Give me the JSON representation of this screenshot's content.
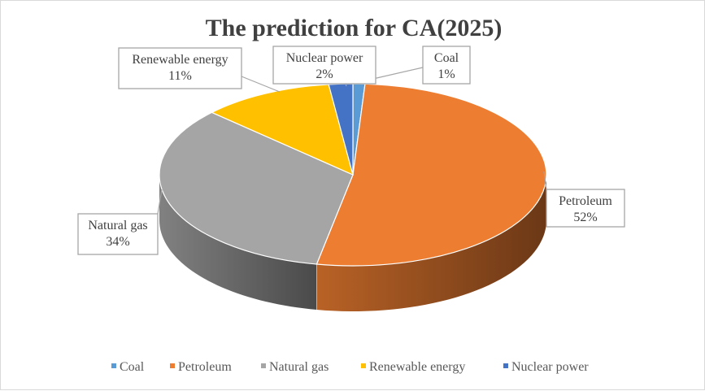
{
  "chart_data": {
    "type": "pie",
    "title": "The prediction for CA(2025)",
    "categories": [
      "Coal",
      "Petroleum",
      "Natural gas",
      "Renewable energy",
      "Nuclear power"
    ],
    "values": [
      1,
      52,
      34,
      11,
      2
    ],
    "value_labels": [
      "1%",
      "52%",
      "34%",
      "11%",
      "2%"
    ],
    "colors": [
      "#5b9bd5",
      "#ed7d31",
      "#a5a5a5",
      "#ffc000",
      "#4472c4"
    ],
    "style": "3d",
    "legend_position": "bottom"
  }
}
